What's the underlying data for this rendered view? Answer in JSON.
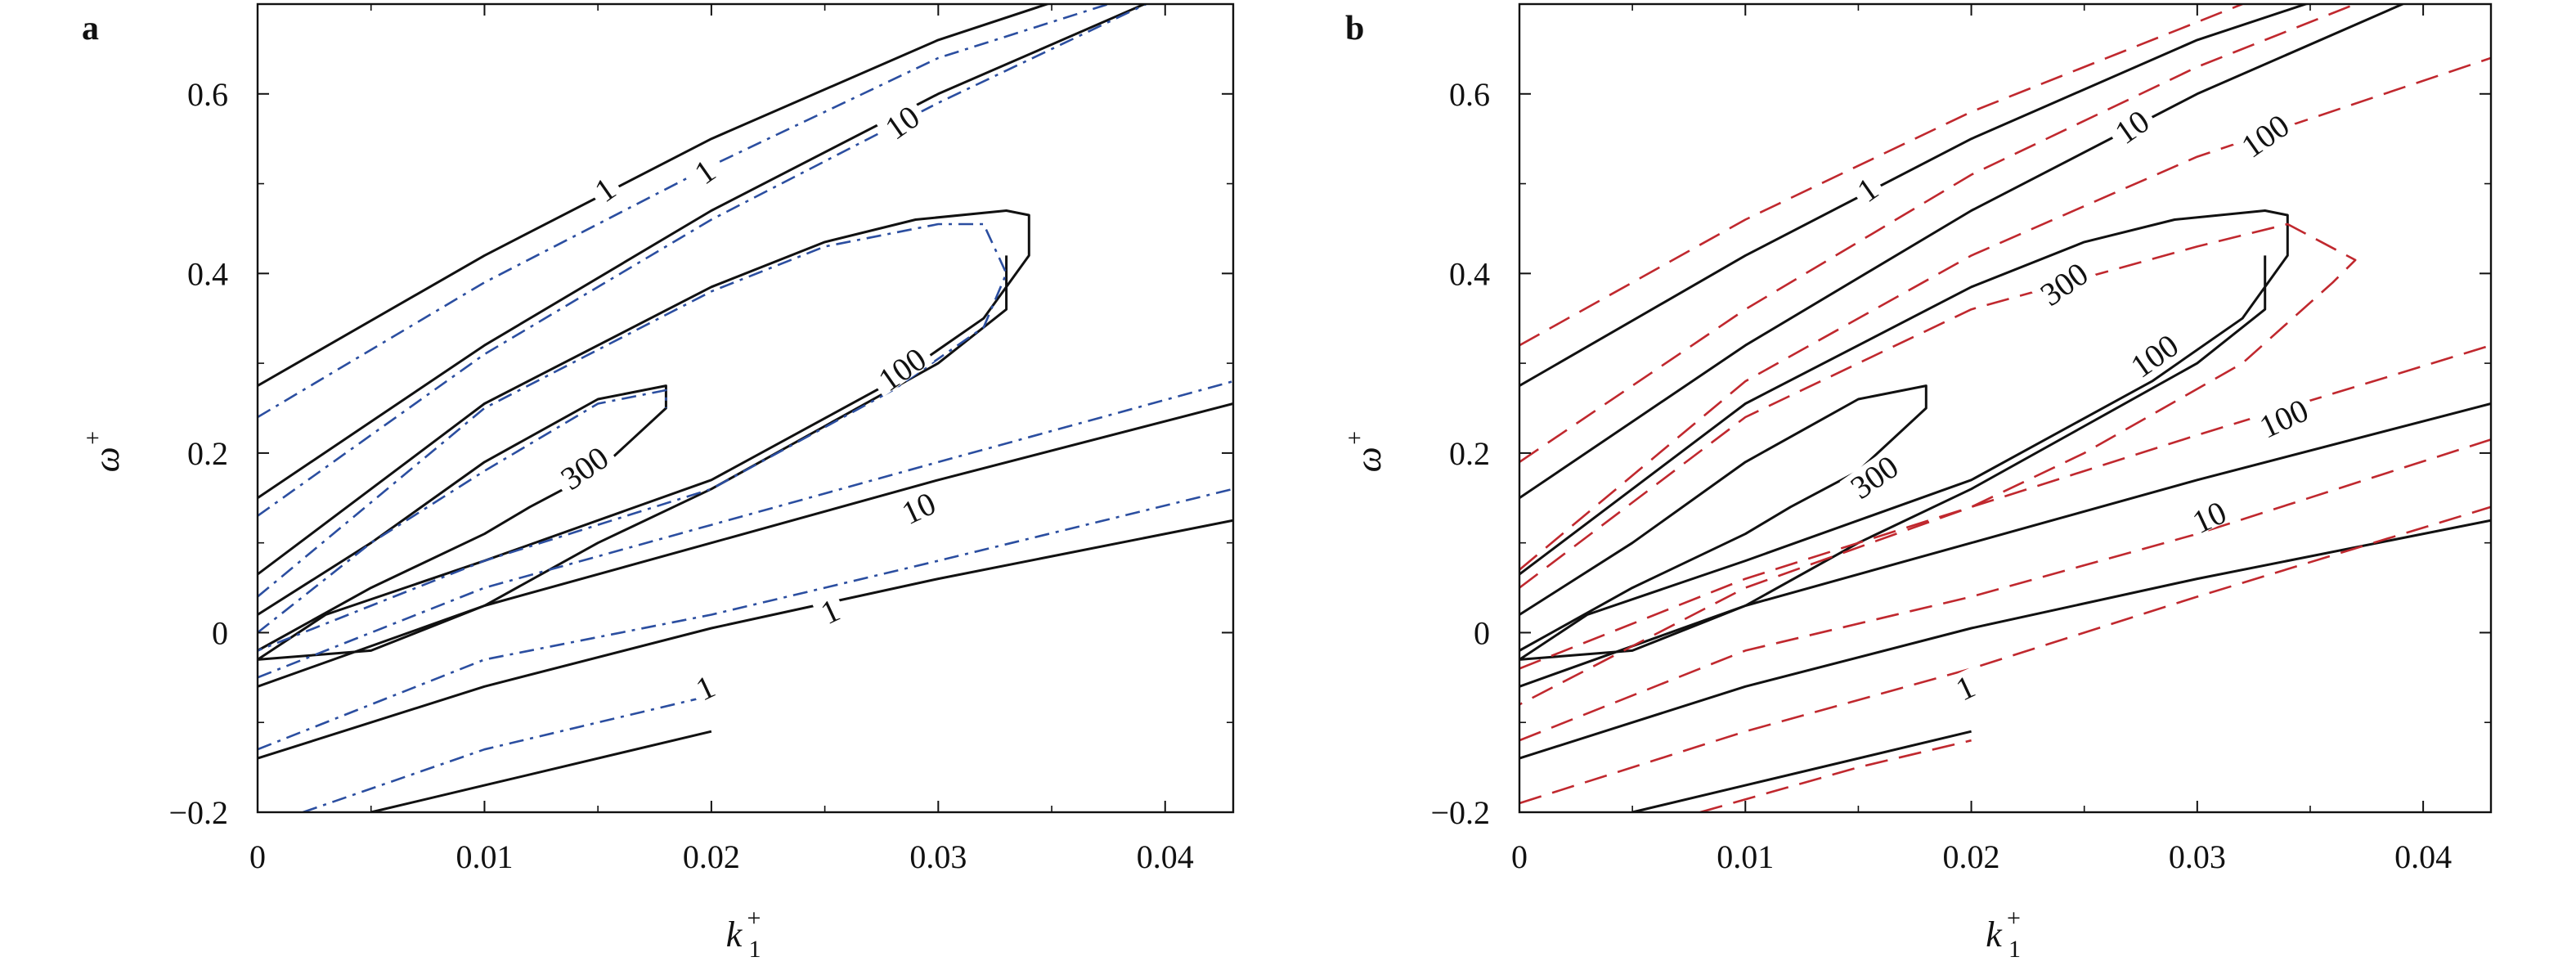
{
  "chart_data": [
    {
      "type": "line",
      "panel_label": "a",
      "xlabel": "k",
      "xlabel_sub": "1",
      "xlabel_sup": "+",
      "ylabel": "ω",
      "ylabel_sup": "+",
      "xlim": [
        0,
        0.043
      ],
      "ylim": [
        -0.2,
        0.7
      ],
      "xticks": [
        0,
        0.01,
        0.02,
        0.03,
        0.04
      ],
      "xticklabels": [
        "0",
        "0.01",
        "0.02",
        "0.03",
        "0.04"
      ],
      "yticks": [
        -0.2,
        0,
        0.2,
        0.4,
        0.6
      ],
      "yticklabels": [
        "−0.2",
        "0",
        "0.2",
        "0.4",
        "0.6"
      ],
      "grid": false,
      "series": [
        {
          "style": "solid",
          "color": "#111111",
          "lines": [
            {
              "level": "1",
              "x": [
                0,
                0.01,
                0.02,
                0.03,
                0.036
              ],
              "y": [
                0.275,
                0.42,
                0.55,
                0.66,
                0.71
              ]
            },
            {
              "level": "10",
              "x": [
                0,
                0.01,
                0.02,
                0.03,
                0.04
              ],
              "y": [
                0.15,
                0.32,
                0.47,
                0.6,
                0.71
              ]
            },
            {
              "level": "100",
              "x": [
                0,
                0.01,
                0.02,
                0.025,
                0.029,
                0.033,
                0.034,
                0.034,
                0.032,
                0.028,
                0.02,
                0.01,
                0.003,
                0,
                0.005,
                0.01,
                0.015,
                0.02,
                0.025,
                0.03,
                0.033,
                0.033
              ],
              "y": [
                0.065,
                0.255,
                0.385,
                0.435,
                0.46,
                0.47,
                0.465,
                0.42,
                0.35,
                0.28,
                0.17,
                0.08,
                0.02,
                -0.03,
                -0.02,
                0.03,
                0.1,
                0.16,
                0.23,
                0.3,
                0.36,
                0.42
              ]
            },
            {
              "level": "300",
              "x": [
                0,
                0.005,
                0.01,
                0.015,
                0.018,
                0.018,
                0.015,
                0.012,
                0.01,
                0.005,
                0
              ],
              "y": [
                0.02,
                0.1,
                0.19,
                0.26,
                0.275,
                0.25,
                0.18,
                0.14,
                0.11,
                0.05,
                -0.02
              ]
            },
            {
              "level": "10",
              "x": [
                0,
                0.01,
                0.02,
                0.03,
                0.043
              ],
              "y": [
                -0.06,
                0.03,
                0.1,
                0.17,
                0.255
              ]
            },
            {
              "level": "1",
              "x": [
                0,
                0.01,
                0.02,
                0.03,
                0.043
              ],
              "y": [
                -0.14,
                -0.06,
                0.005,
                0.06,
                0.125
              ]
            },
            {
              "level": "",
              "x": [
                0.005,
                0.01,
                0.02
              ],
              "y": [
                -0.2,
                -0.17,
                -0.11
              ]
            }
          ]
        },
        {
          "style": "dashdot",
          "color": "#2b4ea0",
          "lines": [
            {
              "level": "1",
              "x": [
                0,
                0.01,
                0.02,
                0.03,
                0.04
              ],
              "y": [
                0.24,
                0.39,
                0.52,
                0.64,
                0.72
              ]
            },
            {
              "level": "10",
              "x": [
                0,
                0.01,
                0.02,
                0.03,
                0.04
              ],
              "y": [
                0.13,
                0.31,
                0.46,
                0.59,
                0.71
              ]
            },
            {
              "level": "100",
              "x": [
                0,
                0.01,
                0.02,
                0.025,
                0.03,
                0.032,
                0.033,
                0.032,
                0.028,
                0.02,
                0.01,
                0.003,
                0
              ],
              "y": [
                0.04,
                0.25,
                0.38,
                0.43,
                0.455,
                0.455,
                0.4,
                0.34,
                0.27,
                0.16,
                0.08,
                0.01,
                -0.02
              ]
            },
            {
              "level": "300",
              "x": [
                0,
                0.005,
                0.01,
                0.015,
                0.018,
                0.018
              ],
              "y": [
                0.0,
                0.1,
                0.18,
                0.255,
                0.27,
                0.25
              ]
            },
            {
              "level": "10",
              "x": [
                0,
                0.01,
                0.02,
                0.03,
                0.043
              ],
              "y": [
                -0.05,
                0.05,
                0.12,
                0.19,
                0.28
              ]
            },
            {
              "level": "1",
              "x": [
                0,
                0.01,
                0.02,
                0.03,
                0.043
              ],
              "y": [
                -0.13,
                -0.03,
                0.02,
                0.08,
                0.16
              ]
            },
            {
              "level": "",
              "x": [
                0.002,
                0.01,
                0.02
              ],
              "y": [
                -0.2,
                -0.13,
                -0.07
              ]
            }
          ]
        }
      ],
      "contour_labels": [
        {
          "text": "1",
          "x": 0.0154,
          "y": 0.49,
          "angle": -35
        },
        {
          "text": "1",
          "x": 0.0198,
          "y": 0.51,
          "angle": -35
        },
        {
          "text": "10",
          "x": 0.0285,
          "y": 0.565,
          "angle": -35
        },
        {
          "text": "100",
          "x": 0.0285,
          "y": 0.29,
          "angle": -35
        },
        {
          "text": "300",
          "x": 0.0145,
          "y": 0.18,
          "angle": -35
        },
        {
          "text": "10",
          "x": 0.0292,
          "y": 0.135,
          "angle": -25
        },
        {
          "text": "1",
          "x": 0.0253,
          "y": 0.02,
          "angle": -25
        },
        {
          "text": "1",
          "x": 0.0198,
          "y": -0.065,
          "angle": -25
        }
      ]
    },
    {
      "type": "line",
      "panel_label": "b",
      "xlabel": "k",
      "xlabel_sub": "1",
      "xlabel_sup": "+",
      "ylabel": "ω",
      "ylabel_sup": "+",
      "xlim": [
        0,
        0.043
      ],
      "ylim": [
        -0.2,
        0.7
      ],
      "xticks": [
        0,
        0.01,
        0.02,
        0.03,
        0.04
      ],
      "xticklabels": [
        "0",
        "0.01",
        "0.02",
        "0.03",
        "0.04"
      ],
      "yticks": [
        -0.2,
        0,
        0.2,
        0.4,
        0.6
      ],
      "yticklabels": [
        "−0.2",
        "0",
        "0.2",
        "0.4",
        "0.6"
      ],
      "grid": false,
      "series": [
        {
          "style": "solid",
          "color": "#111111",
          "lines": [
            {
              "level": "1",
              "x": [
                0,
                0.01,
                0.02,
                0.03,
                0.036
              ],
              "y": [
                0.275,
                0.42,
                0.55,
                0.66,
                0.71
              ]
            },
            {
              "level": "10",
              "x": [
                0,
                0.01,
                0.02,
                0.03,
                0.04
              ],
              "y": [
                0.15,
                0.32,
                0.47,
                0.6,
                0.71
              ]
            },
            {
              "level": "100",
              "x": [
                0,
                0.01,
                0.02,
                0.025,
                0.029,
                0.033,
                0.034,
                0.034,
                0.032,
                0.028,
                0.02,
                0.01,
                0.003,
                0,
                0.005,
                0.01,
                0.015,
                0.02,
                0.025,
                0.03,
                0.033,
                0.033
              ],
              "y": [
                0.065,
                0.255,
                0.385,
                0.435,
                0.46,
                0.47,
                0.465,
                0.42,
                0.35,
                0.28,
                0.17,
                0.08,
                0.02,
                -0.03,
                -0.02,
                0.03,
                0.1,
                0.16,
                0.23,
                0.3,
                0.36,
                0.42
              ]
            },
            {
              "level": "300",
              "x": [
                0,
                0.005,
                0.01,
                0.015,
                0.018,
                0.018,
                0.015,
                0.012,
                0.01,
                0.005,
                0
              ],
              "y": [
                0.02,
                0.1,
                0.19,
                0.26,
                0.275,
                0.25,
                0.18,
                0.14,
                0.11,
                0.05,
                -0.02
              ]
            },
            {
              "level": "10",
              "x": [
                0,
                0.01,
                0.02,
                0.03,
                0.043
              ],
              "y": [
                -0.06,
                0.03,
                0.1,
                0.17,
                0.255
              ]
            },
            {
              "level": "1",
              "x": [
                0,
                0.01,
                0.02,
                0.03,
                0.043
              ],
              "y": [
                -0.14,
                -0.06,
                0.005,
                0.06,
                0.125
              ]
            },
            {
              "level": "",
              "x": [
                0.005,
                0.01,
                0.02
              ],
              "y": [
                -0.2,
                -0.17,
                -0.11
              ]
            }
          ]
        },
        {
          "style": "dashed",
          "color": "#c0282e",
          "lines": [
            {
              "level": "1",
              "x": [
                0,
                0.01,
                0.02,
                0.03,
                0.034
              ],
              "y": [
                0.32,
                0.46,
                0.58,
                0.68,
                0.72
              ]
            },
            {
              "level": "10",
              "x": [
                0,
                0.01,
                0.02,
                0.03,
                0.04
              ],
              "y": [
                0.19,
                0.36,
                0.51,
                0.63,
                0.73
              ]
            },
            {
              "level": "100",
              "x": [
                0,
                0.01,
                0.02,
                0.03,
                0.043
              ],
              "y": [
                0.07,
                0.28,
                0.42,
                0.53,
                0.64
              ]
            },
            {
              "level": "300",
              "x": [
                0,
                0.01,
                0.02,
                0.03,
                0.034,
                0.037,
                0.036,
                0.032,
                0.025,
                0.02,
                0.01,
                0
              ],
              "y": [
                0.05,
                0.24,
                0.36,
                0.43,
                0.455,
                0.415,
                0.39,
                0.3,
                0.2,
                0.14,
                0.05,
                -0.08
              ]
            },
            {
              "level": "100",
              "x": [
                0,
                0.01,
                0.02,
                0.03,
                0.043
              ],
              "y": [
                -0.04,
                0.06,
                0.14,
                0.22,
                0.32
              ]
            },
            {
              "level": "10",
              "x": [
                0,
                0.01,
                0.02,
                0.03,
                0.043
              ],
              "y": [
                -0.12,
                -0.02,
                0.04,
                0.11,
                0.215
              ]
            },
            {
              "level": "1",
              "x": [
                0,
                0.01,
                0.02,
                0.03,
                0.043
              ],
              "y": [
                -0.19,
                -0.11,
                -0.04,
                0.04,
                0.14
              ]
            },
            {
              "level": "",
              "x": [
                0.008,
                0.015,
                0.02
              ],
              "y": [
                -0.2,
                -0.15,
                -0.12
              ]
            }
          ]
        }
      ],
      "contour_labels": [
        {
          "text": "1",
          "x": 0.0155,
          "y": 0.49,
          "angle": -35
        },
        {
          "text": "10",
          "x": 0.0272,
          "y": 0.56,
          "angle": -35
        },
        {
          "text": "100",
          "x": 0.0331,
          "y": 0.55,
          "angle": -35
        },
        {
          "text": "300",
          "x": 0.0242,
          "y": 0.385,
          "angle": -35
        },
        {
          "text": "100",
          "x": 0.0282,
          "y": 0.305,
          "angle": -35
        },
        {
          "text": "300",
          "x": 0.0158,
          "y": 0.17,
          "angle": -35
        },
        {
          "text": "100",
          "x": 0.0339,
          "y": 0.235,
          "angle": -25
        },
        {
          "text": "10",
          "x": 0.0306,
          "y": 0.125,
          "angle": -25
        },
        {
          "text": "1",
          "x": 0.0198,
          "y": -0.065,
          "angle": -25
        }
      ]
    }
  ]
}
